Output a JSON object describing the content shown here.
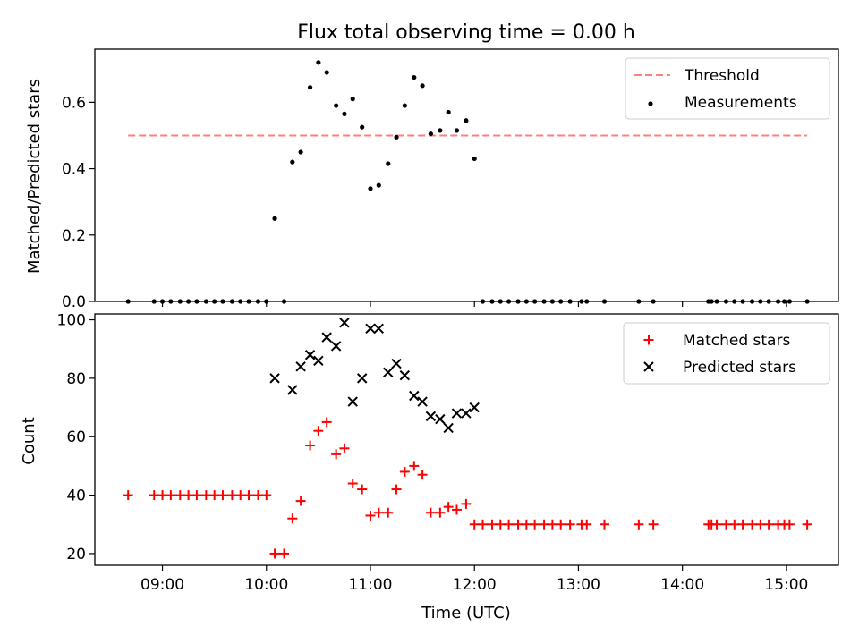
{
  "chart_data": [
    {
      "type": "scatter",
      "title": "Flux total observing time = 0.00 h",
      "xlabel": "",
      "ylabel": "Matched/Predicted stars",
      "xlim_hours": [
        8.35,
        15.5
      ],
      "ylim": [
        0,
        0.76
      ],
      "yticks": [
        0.0,
        0.2,
        0.4,
        0.6
      ],
      "ytick_labels": [
        "0.0",
        "0.2",
        "0.4",
        "0.6"
      ],
      "xticks_hours": [
        9,
        10,
        11,
        12,
        13,
        14,
        15
      ],
      "legend_position": "top-right",
      "threshold": {
        "name": "Threshold",
        "value": 0.5,
        "x_start": 8.67,
        "x_end": 15.2,
        "color": "#ff7f7f",
        "style": "dashed"
      },
      "series": [
        {
          "name": "Measurements",
          "marker": "dot",
          "color": "#000000",
          "points": [
            [
              8.67,
              0
            ],
            [
              8.92,
              0
            ],
            [
              9.0,
              0
            ],
            [
              9.08,
              0
            ],
            [
              9.17,
              0
            ],
            [
              9.25,
              0
            ],
            [
              9.33,
              0
            ],
            [
              9.42,
              0
            ],
            [
              9.5,
              0
            ],
            [
              9.58,
              0
            ],
            [
              9.67,
              0
            ],
            [
              9.75,
              0
            ],
            [
              9.83,
              0
            ],
            [
              9.92,
              0
            ],
            [
              10.0,
              0
            ],
            [
              10.08,
              0.25
            ],
            [
              10.17,
              0
            ],
            [
              10.25,
              0.42
            ],
            [
              10.33,
              0.45
            ],
            [
              10.42,
              0.645
            ],
            [
              10.5,
              0.72
            ],
            [
              10.58,
              0.69
            ],
            [
              10.67,
              0.59
            ],
            [
              10.75,
              0.565
            ],
            [
              10.83,
              0.61
            ],
            [
              10.92,
              0.525
            ],
            [
              11.0,
              0.34
            ],
            [
              11.08,
              0.35
            ],
            [
              11.17,
              0.415
            ],
            [
              11.25,
              0.495
            ],
            [
              11.33,
              0.59
            ],
            [
              11.42,
              0.675
            ],
            [
              11.5,
              0.65
            ],
            [
              11.58,
              0.505
            ],
            [
              11.67,
              0.515
            ],
            [
              11.75,
              0.57
            ],
            [
              11.83,
              0.515
            ],
            [
              11.92,
              0.545
            ],
            [
              12.0,
              0.43
            ],
            [
              12.08,
              0
            ],
            [
              12.17,
              0
            ],
            [
              12.25,
              0
            ],
            [
              12.33,
              0
            ],
            [
              12.42,
              0
            ],
            [
              12.5,
              0
            ],
            [
              12.58,
              0
            ],
            [
              12.67,
              0
            ],
            [
              12.75,
              0
            ],
            [
              12.83,
              0
            ],
            [
              12.92,
              0
            ],
            [
              13.03,
              0
            ],
            [
              13.08,
              0
            ],
            [
              13.25,
              0
            ],
            [
              13.58,
              0
            ],
            [
              13.72,
              0
            ],
            [
              14.25,
              0
            ],
            [
              14.28,
              0
            ],
            [
              14.33,
              0
            ],
            [
              14.42,
              0
            ],
            [
              14.5,
              0
            ],
            [
              14.58,
              0
            ],
            [
              14.67,
              0
            ],
            [
              14.75,
              0
            ],
            [
              14.83,
              0
            ],
            [
              14.92,
              0
            ],
            [
              14.98,
              0
            ],
            [
              15.03,
              0
            ],
            [
              15.2,
              0
            ]
          ]
        }
      ]
    },
    {
      "type": "scatter",
      "title": "",
      "xlabel": "Time (UTC)",
      "ylabel": "Count",
      "xlim_hours": [
        8.35,
        15.5
      ],
      "ylim": [
        16,
        102
      ],
      "yticks": [
        20,
        40,
        60,
        80,
        100
      ],
      "ytick_labels": [
        "20",
        "40",
        "60",
        "80",
        "100"
      ],
      "xticks_hours": [
        9,
        10,
        11,
        12,
        13,
        14,
        15
      ],
      "xtick_labels": [
        "09:00",
        "10:00",
        "11:00",
        "12:00",
        "13:00",
        "14:00",
        "15:00"
      ],
      "legend_position": "top-right",
      "series": [
        {
          "name": "Matched stars",
          "marker": "plus",
          "color": "#ff0000",
          "points": [
            [
              8.67,
              40
            ],
            [
              8.92,
              40
            ],
            [
              9.0,
              40
            ],
            [
              9.08,
              40
            ],
            [
              9.17,
              40
            ],
            [
              9.25,
              40
            ],
            [
              9.33,
              40
            ],
            [
              9.42,
              40
            ],
            [
              9.5,
              40
            ],
            [
              9.58,
              40
            ],
            [
              9.67,
              40
            ],
            [
              9.75,
              40
            ],
            [
              9.83,
              40
            ],
            [
              9.92,
              40
            ],
            [
              10.0,
              40
            ],
            [
              10.08,
              20
            ],
            [
              10.17,
              20
            ],
            [
              10.25,
              32
            ],
            [
              10.33,
              38
            ],
            [
              10.42,
              57
            ],
            [
              10.5,
              62
            ],
            [
              10.58,
              65
            ],
            [
              10.67,
              54
            ],
            [
              10.75,
              56
            ],
            [
              10.83,
              44
            ],
            [
              10.92,
              42
            ],
            [
              11.0,
              33
            ],
            [
              11.08,
              34
            ],
            [
              11.17,
              34
            ],
            [
              11.25,
              42
            ],
            [
              11.33,
              48
            ],
            [
              11.42,
              50
            ],
            [
              11.5,
              47
            ],
            [
              11.58,
              34
            ],
            [
              11.67,
              34
            ],
            [
              11.75,
              36
            ],
            [
              11.83,
              35
            ],
            [
              11.92,
              37
            ],
            [
              12.0,
              30
            ],
            [
              12.08,
              30
            ],
            [
              12.17,
              30
            ],
            [
              12.25,
              30
            ],
            [
              12.33,
              30
            ],
            [
              12.42,
              30
            ],
            [
              12.5,
              30
            ],
            [
              12.58,
              30
            ],
            [
              12.67,
              30
            ],
            [
              12.75,
              30
            ],
            [
              12.83,
              30
            ],
            [
              12.92,
              30
            ],
            [
              13.03,
              30
            ],
            [
              13.08,
              30
            ],
            [
              13.25,
              30
            ],
            [
              13.58,
              30
            ],
            [
              13.72,
              30
            ],
            [
              14.25,
              30
            ],
            [
              14.28,
              30
            ],
            [
              14.33,
              30
            ],
            [
              14.42,
              30
            ],
            [
              14.5,
              30
            ],
            [
              14.58,
              30
            ],
            [
              14.67,
              30
            ],
            [
              14.75,
              30
            ],
            [
              14.83,
              30
            ],
            [
              14.92,
              30
            ],
            [
              14.98,
              30
            ],
            [
              15.03,
              30
            ],
            [
              15.2,
              30
            ]
          ]
        },
        {
          "name": "Predicted stars",
          "marker": "x",
          "color": "#000000",
          "points": [
            [
              10.08,
              80
            ],
            [
              10.25,
              76
            ],
            [
              10.33,
              84
            ],
            [
              10.42,
              88
            ],
            [
              10.5,
              86
            ],
            [
              10.58,
              94
            ],
            [
              10.67,
              91
            ],
            [
              10.75,
              99
            ],
            [
              10.83,
              72
            ],
            [
              10.92,
              80
            ],
            [
              11.0,
              97
            ],
            [
              11.08,
              97
            ],
            [
              11.17,
              82
            ],
            [
              11.25,
              85
            ],
            [
              11.33,
              81
            ],
            [
              11.42,
              74
            ],
            [
              11.5,
              72
            ],
            [
              11.58,
              67
            ],
            [
              11.67,
              66
            ],
            [
              11.75,
              63
            ],
            [
              11.83,
              68
            ],
            [
              11.92,
              68
            ],
            [
              12.0,
              70
            ]
          ]
        }
      ]
    }
  ]
}
